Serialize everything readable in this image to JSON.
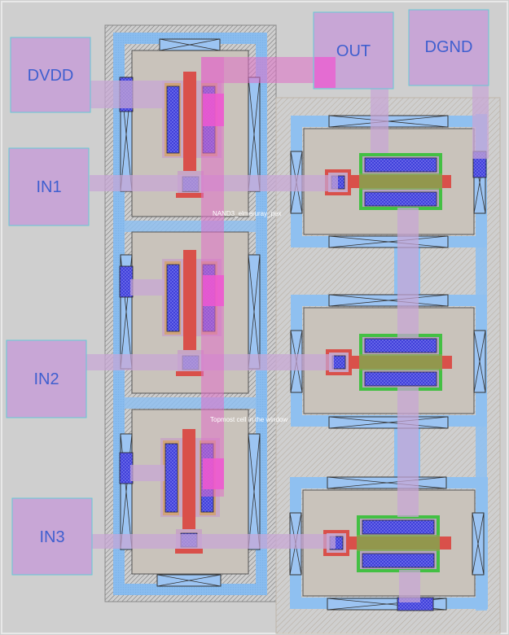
{
  "pins": {
    "dvdd": "DVDD",
    "in1": "IN1",
    "in2": "IN2",
    "in3": "IN3",
    "out": "OUT",
    "dgnd": "DGND"
  },
  "labels": {
    "cell_name": "NAND3_elmeruray_pex",
    "topcell": "Topmost cell in the window"
  },
  "colors": {
    "background": "#cfcfcf",
    "pin_fill": "#c8a6d6",
    "pin_text": "#3f5fcf",
    "metal1": "#7fb4ec",
    "poly": "#e05050",
    "contact": "#3a3ad6",
    "diffusion_outline": "#43c043",
    "metal2": "#d070c8",
    "nwell_outline": "#555555"
  }
}
